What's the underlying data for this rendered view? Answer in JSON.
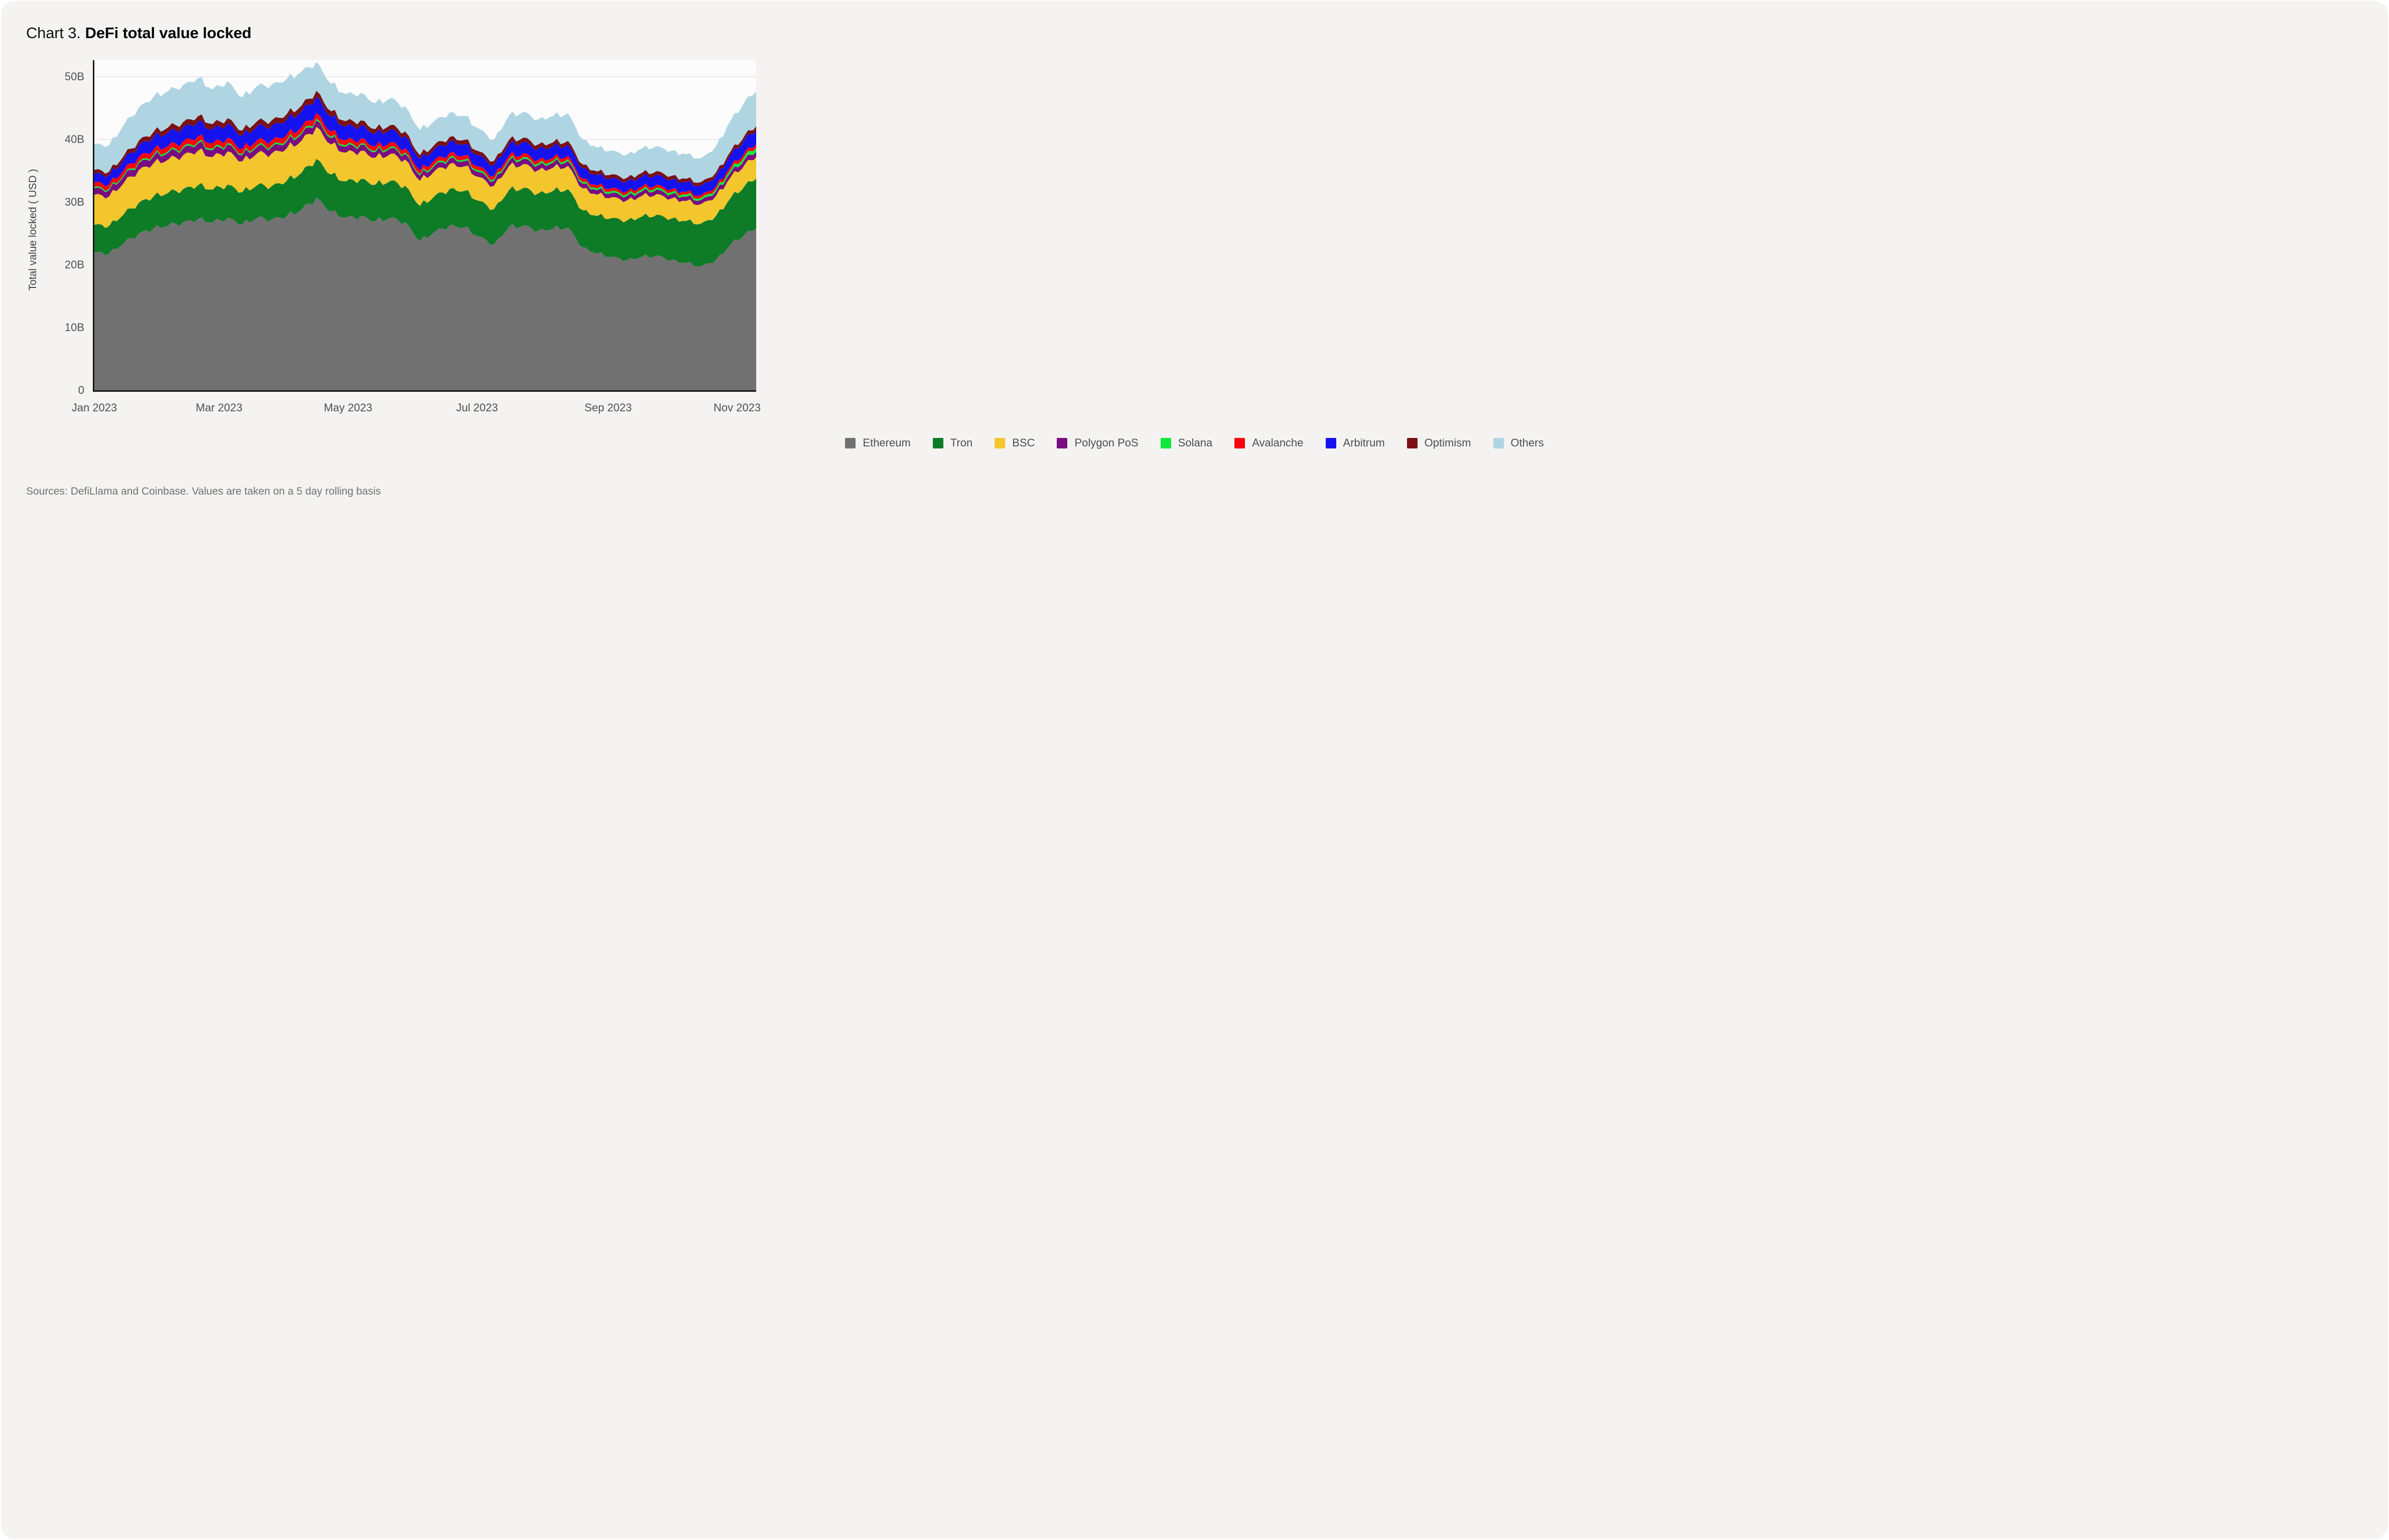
{
  "card": {
    "title_prefix": "Chart 3.",
    "title": "DeFi total value locked",
    "source": "Sources: DefiLlama and Coinbase. Values are taken on a 5 day rolling basis"
  },
  "colors": {
    "page": "#ffffff",
    "card_bg": "#f4f3f1",
    "plot_bg": "#fcfcfc",
    "grid": "#e4e3e1",
    "axis": "#17171a",
    "tick_text": "#4c4f54",
    "legend_text": "#4b4e53",
    "source_text": "#6e7073",
    "title_text": "#050505"
  },
  "chart_data": {
    "type": "area",
    "stacked": true,
    "title": "DeFi total value locked",
    "xlabel": "",
    "ylabel": "Total value locked ( USD )",
    "unit": "USD billions",
    "ylim": [
      0,
      50
    ],
    "grid": "horizontal",
    "legend_position": "bottom",
    "y_tick_values": [
      0,
      10,
      20,
      30,
      40,
      50
    ],
    "y_ticks": [
      "0",
      "10B",
      "20B",
      "30B",
      "40B",
      "50B"
    ],
    "x_ticks": [
      "Jan 2023",
      "Mar 2023",
      "May 2023",
      "Jul 2023",
      "Sep 2023",
      "Nov 2023"
    ],
    "x_tick_day_offsets": [
      0,
      59,
      120,
      181,
      243,
      304
    ],
    "dates": [
      "2023-01-01",
      "2023-01-08",
      "2023-01-15",
      "2023-01-22",
      "2023-01-29",
      "2023-02-05",
      "2023-02-12",
      "2023-02-19",
      "2023-02-26",
      "2023-03-05",
      "2023-03-12",
      "2023-03-19",
      "2023-03-26",
      "2023-04-02",
      "2023-04-09",
      "2023-04-16",
      "2023-04-23",
      "2023-04-30",
      "2023-05-07",
      "2023-05-14",
      "2023-05-21",
      "2023-05-28",
      "2023-06-04",
      "2023-06-11",
      "2023-06-18",
      "2023-06-25",
      "2023-07-02",
      "2023-07-09",
      "2023-07-16",
      "2023-07-23",
      "2023-07-30",
      "2023-08-06",
      "2023-08-13",
      "2023-08-20",
      "2023-08-27",
      "2023-09-03",
      "2023-09-10",
      "2023-09-17",
      "2023-09-24",
      "2023-10-01",
      "2023-10-08",
      "2023-10-15",
      "2023-10-22",
      "2023-10-29",
      "2023-11-05",
      "2023-11-10"
    ],
    "series": [
      {
        "name": "Ethereum",
        "color": "#717171",
        "values": [
          22.0,
          21.8,
          23.5,
          25.0,
          25.8,
          26.3,
          26.8,
          27.3,
          26.8,
          27.5,
          26.5,
          27.5,
          27.3,
          27.8,
          28.8,
          30.7,
          28.5,
          27.5,
          27.8,
          27.0,
          27.5,
          26.8,
          23.8,
          25.3,
          26.3,
          26.0,
          24.5,
          23.3,
          26.0,
          26.3,
          25.5,
          25.8,
          26.0,
          22.8,
          21.8,
          21.3,
          20.8,
          21.3,
          21.5,
          20.8,
          20.3,
          19.8,
          20.8,
          23.3,
          25.0,
          25.8
        ]
      },
      {
        "name": "Tron",
        "color": "#0e7b27",
        "values": [
          4.4,
          4.4,
          4.6,
          4.9,
          5.1,
          5.2,
          5.3,
          5.4,
          5.2,
          5.3,
          5.1,
          5.2,
          5.3,
          5.6,
          5.9,
          6.2,
          5.9,
          5.8,
          5.9,
          5.8,
          5.9,
          5.8,
          5.6,
          5.7,
          5.8,
          5.8,
          5.7,
          5.6,
          5.9,
          6.0,
          5.9,
          6.0,
          6.1,
          5.9,
          6.0,
          6.2,
          6.3,
          6.4,
          6.5,
          6.6,
          6.7,
          6.8,
          7.0,
          7.4,
          7.8,
          8.0
        ]
      },
      {
        "name": "BSC",
        "color": "#f3c62e",
        "values": [
          4.8,
          4.7,
          5.0,
          5.2,
          5.3,
          5.3,
          5.4,
          5.5,
          5.2,
          5.3,
          4.9,
          5.1,
          5.2,
          5.2,
          5.1,
          5.1,
          4.8,
          4.6,
          4.5,
          4.3,
          4.3,
          4.2,
          4.0,
          4.0,
          4.0,
          3.9,
          3.8,
          3.7,
          3.8,
          3.8,
          3.7,
          3.7,
          3.7,
          3.5,
          3.4,
          3.3,
          3.2,
          3.3,
          3.3,
          3.2,
          3.2,
          3.1,
          3.2,
          3.3,
          3.4,
          3.4
        ]
      },
      {
        "name": "Polygon PoS",
        "color": "#7a0c80",
        "values": [
          1.0,
          1.0,
          1.05,
          1.1,
          1.1,
          1.1,
          1.1,
          1.15,
          1.1,
          1.1,
          1.0,
          1.05,
          1.05,
          1.05,
          1.05,
          1.05,
          1.0,
          0.95,
          0.95,
          0.9,
          0.9,
          0.88,
          0.82,
          0.85,
          0.85,
          0.84,
          0.8,
          0.78,
          0.82,
          0.82,
          0.8,
          0.78,
          0.76,
          0.72,
          0.7,
          0.7,
          0.7,
          0.7,
          0.7,
          0.68,
          0.66,
          0.65,
          0.7,
          0.75,
          0.82,
          0.85
        ]
      },
      {
        "name": "Solana",
        "color": "#10e83c",
        "values": [
          0.21,
          0.21,
          0.22,
          0.23,
          0.24,
          0.25,
          0.25,
          0.26,
          0.25,
          0.24,
          0.22,
          0.23,
          0.24,
          0.25,
          0.25,
          0.26,
          0.25,
          0.25,
          0.25,
          0.24,
          0.25,
          0.24,
          0.24,
          0.25,
          0.26,
          0.26,
          0.28,
          0.28,
          0.3,
          0.3,
          0.3,
          0.31,
          0.31,
          0.3,
          0.3,
          0.31,
          0.32,
          0.33,
          0.33,
          0.34,
          0.35,
          0.36,
          0.4,
          0.48,
          0.58,
          0.65
        ]
      },
      {
        "name": "Avalanche",
        "color": "#f6070f",
        "values": [
          0.75,
          0.74,
          0.78,
          0.82,
          0.85,
          0.85,
          0.86,
          0.88,
          0.84,
          0.83,
          0.78,
          0.8,
          0.82,
          0.85,
          0.88,
          0.9,
          0.82,
          0.78,
          0.75,
          0.7,
          0.7,
          0.68,
          0.62,
          0.63,
          0.64,
          0.63,
          0.58,
          0.55,
          0.58,
          0.58,
          0.56,
          0.54,
          0.53,
          0.5,
          0.48,
          0.46,
          0.45,
          0.46,
          0.46,
          0.45,
          0.44,
          0.44,
          0.46,
          0.5,
          0.54,
          0.56
        ]
      },
      {
        "name": "Arbitrum",
        "color": "#1512f0",
        "values": [
          1.4,
          1.42,
          1.6,
          1.8,
          2.0,
          2.1,
          2.2,
          2.3,
          2.2,
          2.25,
          2.1,
          2.2,
          2.3,
          2.4,
          2.5,
          2.6,
          2.35,
          2.2,
          2.1,
          2.0,
          2.0,
          1.95,
          1.75,
          1.8,
          1.85,
          1.82,
          1.75,
          1.7,
          1.8,
          1.82,
          1.78,
          1.75,
          1.72,
          1.65,
          1.6,
          1.58,
          1.55,
          1.58,
          1.58,
          1.55,
          1.52,
          1.5,
          1.6,
          1.8,
          2.1,
          2.2
        ]
      },
      {
        "name": "Optimism",
        "color": "#7a1215",
        "values": [
          0.6,
          0.6,
          0.68,
          0.75,
          0.82,
          0.86,
          0.88,
          0.92,
          0.88,
          0.87,
          0.82,
          0.85,
          0.88,
          0.9,
          0.93,
          0.95,
          0.88,
          0.84,
          0.8,
          0.75,
          0.75,
          0.72,
          0.66,
          0.68,
          0.7,
          0.69,
          0.68,
          0.66,
          0.7,
          0.7,
          0.68,
          0.67,
          0.66,
          0.63,
          0.61,
          0.6,
          0.59,
          0.6,
          0.6,
          0.58,
          0.57,
          0.56,
          0.58,
          0.62,
          0.64,
          0.66
        ]
      },
      {
        "name": "Others",
        "color": "#afd5e3",
        "values": [
          4.1,
          4.2,
          4.9,
          5.3,
          5.6,
          5.8,
          5.9,
          6.1,
          5.5,
          5.9,
          5.3,
          5.6,
          5.7,
          5.6,
          5.4,
          4.6,
          4.4,
          4.3,
          4.4,
          4.1,
          4.3,
          4.0,
          4.0,
          3.8,
          3.9,
          3.8,
          3.6,
          3.4,
          3.9,
          4.1,
          4.0,
          4.2,
          4.4,
          4.0,
          3.8,
          3.8,
          3.7,
          3.9,
          4.0,
          4.0,
          3.9,
          3.8,
          4.2,
          4.9,
          5.4,
          5.6
        ]
      }
    ]
  }
}
